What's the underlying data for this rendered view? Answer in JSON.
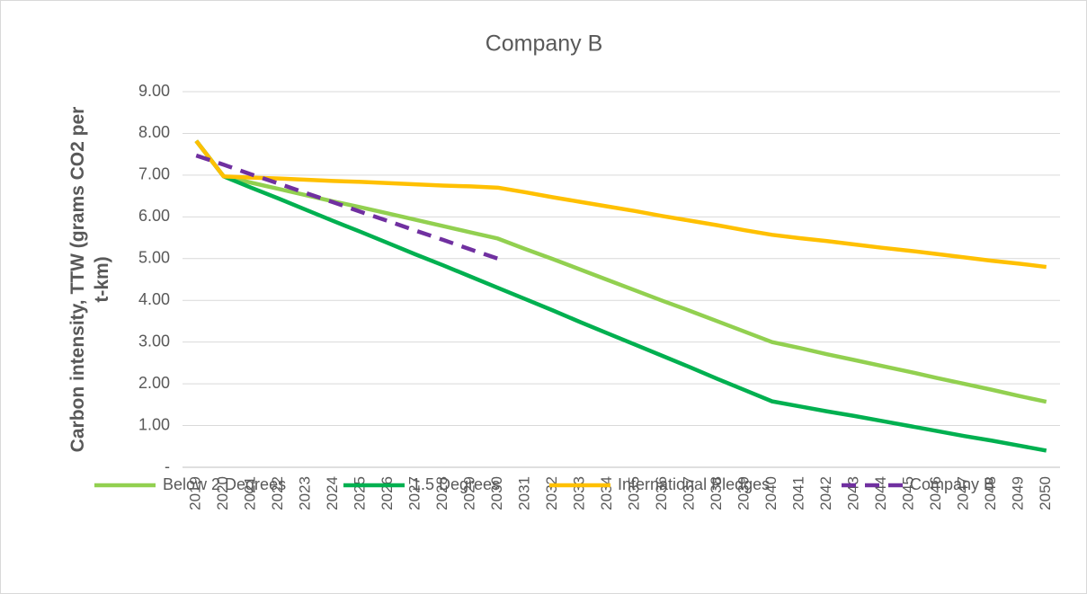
{
  "chart_data": {
    "type": "line",
    "title": "Company B",
    "ylabel": "Carbon intensity, TTW (grams CO2 per t-km)",
    "categories": [
      "2019",
      "2020",
      "2021",
      "2022",
      "2023",
      "2024",
      "2025",
      "2026",
      "2027",
      "2028",
      "2029",
      "2030",
      "2031",
      "2032",
      "2033",
      "2034",
      "2035",
      "2036",
      "2037",
      "2038",
      "2039",
      "2040",
      "2041",
      "2042",
      "2043",
      "2044",
      "2045",
      "2046",
      "2047",
      "2048",
      "2049",
      "2050"
    ],
    "ylim": [
      0,
      9
    ],
    "yticks": [
      {
        "value": 0,
        "label": "-"
      },
      {
        "value": 1,
        "label": "1.00"
      },
      {
        "value": 2,
        "label": "2.00"
      },
      {
        "value": 3,
        "label": "3.00"
      },
      {
        "value": 4,
        "label": "4.00"
      },
      {
        "value": 5,
        "label": "5.00"
      },
      {
        "value": 6,
        "label": "6.00"
      },
      {
        "value": 7,
        "label": "7.00"
      },
      {
        "value": 8,
        "label": "8.00"
      },
      {
        "value": 9,
        "label": "9.00"
      }
    ],
    "grid": true,
    "legend": "bottom",
    "series": [
      {
        "name": "Below 2 Degrees",
        "color": "#92d050",
        "values": [
          7.82,
          6.97,
          6.82,
          6.67,
          6.52,
          6.37,
          6.23,
          6.08,
          5.93,
          5.78,
          5.63,
          5.48,
          5.23,
          4.99,
          4.74,
          4.49,
          4.24,
          3.99,
          3.75,
          3.5,
          3.25,
          3.0,
          2.86,
          2.71,
          2.57,
          2.43,
          2.29,
          2.14,
          2.0,
          1.86,
          1.71,
          1.57
        ]
      },
      {
        "name": "1.5 Degrees",
        "color": "#00b050",
        "values": [
          7.82,
          6.97,
          6.7,
          6.44,
          6.17,
          5.9,
          5.64,
          5.37,
          5.1,
          4.84,
          4.57,
          4.3,
          4.03,
          3.76,
          3.48,
          3.21,
          2.94,
          2.67,
          2.4,
          2.12,
          1.85,
          1.58,
          1.46,
          1.34,
          1.23,
          1.11,
          0.99,
          0.87,
          0.75,
          0.64,
          0.52,
          0.4
        ]
      },
      {
        "name": "International Pledges",
        "color": "#ffc000",
        "values": [
          7.82,
          6.97,
          6.94,
          6.92,
          6.89,
          6.86,
          6.84,
          6.81,
          6.78,
          6.75,
          6.73,
          6.7,
          6.59,
          6.47,
          6.36,
          6.25,
          6.14,
          6.02,
          5.91,
          5.8,
          5.68,
          5.57,
          5.49,
          5.42,
          5.34,
          5.26,
          5.19,
          5.11,
          5.03,
          4.95,
          4.88,
          4.8
        ]
      },
      {
        "name": "Company B",
        "color": "#7030a0",
        "dashed": true,
        "values": [
          7.47,
          7.25,
          7.02,
          6.8,
          6.57,
          6.35,
          6.12,
          5.9,
          5.67,
          5.45,
          5.22,
          5.0,
          null,
          null,
          null,
          null,
          null,
          null,
          null,
          null,
          null,
          null,
          null,
          null,
          null,
          null,
          null,
          null,
          null,
          null,
          null,
          null
        ]
      }
    ]
  }
}
